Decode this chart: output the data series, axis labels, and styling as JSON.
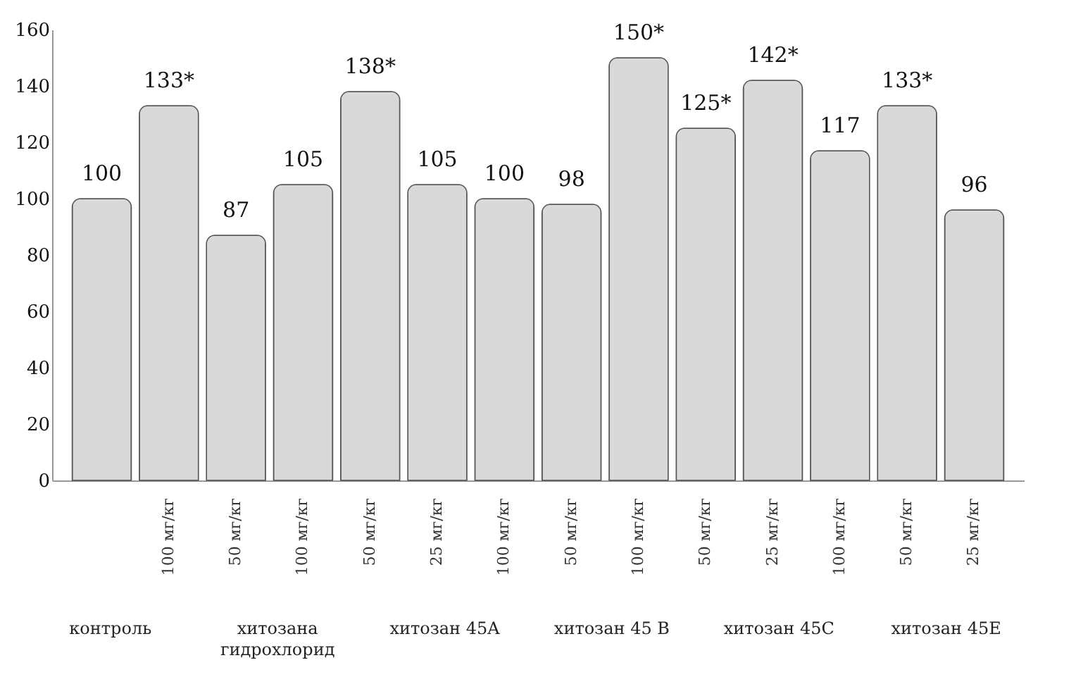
{
  "chart_data": {
    "type": "bar",
    "categories": [
      null,
      "100 мг/кг",
      "50 мг/кг",
      "100 мг/кг",
      "50 мг/кг",
      "25 мг/кг",
      "100 мг/кг",
      "50 мг/кг",
      "100 мг/кг",
      "50 мг/кг",
      "25 мг/кг",
      "100 мг/кг",
      "50 мг/кг",
      "25 мг/кг"
    ],
    "values": [
      100,
      133,
      87,
      105,
      138,
      105,
      100,
      98,
      150,
      125,
      142,
      117,
      133,
      96
    ],
    "value_labels": [
      "100",
      "133*",
      "87",
      "105",
      "138*",
      "105",
      "100",
      "98",
      "150*",
      "125*",
      "142*",
      "117",
      "133*",
      "96"
    ],
    "color": "#d9d9d9",
    "ylim": [
      0,
      160
    ],
    "yticks": [
      0,
      20,
      40,
      60,
      80,
      100,
      120,
      140,
      160
    ],
    "grid": false,
    "annotations": [
      "контроль",
      "хитозана\nгидрохлорид",
      "хитозан 45A",
      "хитозан 45 B",
      "хитозан 45C",
      "хитозан 45E"
    ]
  }
}
